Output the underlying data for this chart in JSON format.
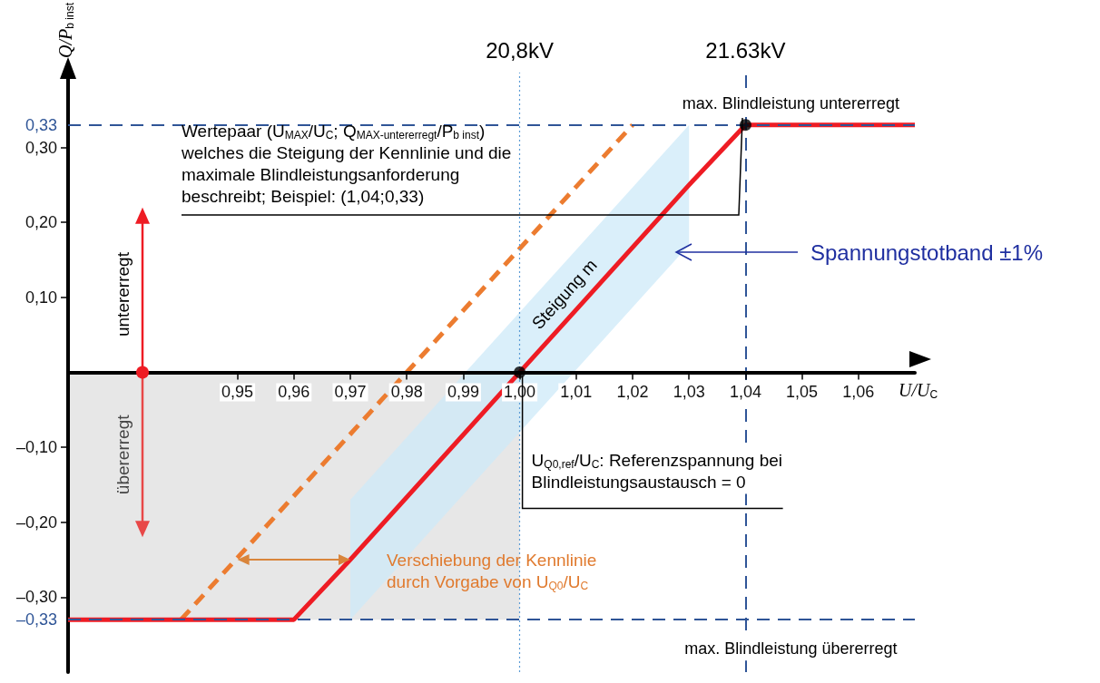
{
  "chart_data": {
    "type": "line",
    "xlabel": "U/U$_{C}$",
    "ylabel": "Q/P$_{b inst}$",
    "xlim": [
      0.92,
      1.07
    ],
    "ylim": [
      -0.4,
      0.4
    ],
    "xticks": [
      {
        "value": 0.95,
        "label": "0,95"
      },
      {
        "value": 0.96,
        "label": "0,96"
      },
      {
        "value": 0.97,
        "label": "0,97"
      },
      {
        "value": 0.98,
        "label": "0,98"
      },
      {
        "value": 0.99,
        "label": "0,99"
      },
      {
        "value": 1.0,
        "label": "1,00"
      },
      {
        "value": 1.01,
        "label": "1,01"
      },
      {
        "value": 1.02,
        "label": "1,02"
      },
      {
        "value": 1.03,
        "label": "1,03"
      },
      {
        "value": 1.04,
        "label": "1,04"
      },
      {
        "value": 1.05,
        "label": "1,05"
      },
      {
        "value": 1.06,
        "label": "1,06"
      }
    ],
    "yticks": [
      {
        "value": -0.3,
        "label": "–0,30"
      },
      {
        "value": -0.2,
        "label": "–0,20"
      },
      {
        "value": -0.1,
        "label": "–0,10"
      },
      {
        "value": 0.1,
        "label": "0,10"
      },
      {
        "value": 0.2,
        "label": "0,20"
      },
      {
        "value": 0.3,
        "label": "0,30"
      }
    ],
    "grid": false,
    "series": [
      {
        "type": "area",
        "color": "#e7e7e7",
        "x": [
          0.92,
          1.0
        ],
        "values": [
          -0.33,
          -0.33
        ],
        "marker": "none"
      },
      {
        "type": "line",
        "color": "#ec7c30",
        "line_style": "dashed",
        "x": [
          0.94,
          1.02
        ],
        "values": [
          -0.33,
          0.33
        ],
        "marker": "none"
      },
      {
        "color": "#ee1c24",
        "line_style": "solid",
        "x": [
          0.92,
          0.96,
          0.97,
          1.0,
          1.03,
          1.04,
          1.07
        ],
        "values": [
          -0.33,
          -0.33,
          -0.25,
          0,
          0.25,
          0.33,
          0.33
        ],
        "lower": [
          null,
          null,
          -0.33,
          -0.08,
          0.17,
          null,
          null
        ],
        "upper": [
          null,
          null,
          -0.17,
          0.08,
          0.33,
          null,
          null
        ],
        "marker": "none"
      },
      {
        "type": "scatter",
        "color": "#000000",
        "x": [
          1.0,
          1.04
        ],
        "values": [
          0,
          0.33
        ],
        "marker": "circle"
      }
    ],
    "ref_lines": [
      {
        "axis": "y",
        "value": 0.33,
        "label": "0,33",
        "color": "#2f5597",
        "line_style": "dashed"
      },
      {
        "axis": "y",
        "value": -0.33,
        "label": "–0,33",
        "color": "#2f5597",
        "line_style": "dashed"
      },
      {
        "axis": "x",
        "value": 1.0,
        "label": "20,8kV",
        "color": "#5b9bd5",
        "line_style": "dotted"
      },
      {
        "axis": "x",
        "value": 1.04,
        "label": "21.63kV",
        "color": "#2f5597",
        "line_style": "dashed"
      }
    ],
    "annotations": [
      {
        "text": "max. Blindleistung untererregt",
        "x": 1.04,
        "y": 0.33
      },
      "Wertepaar (U$_{MAX}$/U$_{C}$; Q$_{MAX-untererregt}$/P$_{b inst}$)\nwelches die Steigung der Kennlinie und die\nmaximale Blindleistungsanforderung\nbeschreibt; Beispiel: (1,04;0,33)",
      {
        "text": "Steigung m",
        "x": 1.01,
        "y": 0.08
      },
      {
        "text": "U$_{Q0,ref}$/U$_{C}$: Referenzspannung bei\nBlindleistungsaustausch = 0",
        "x": 1.0,
        "y": 0
      },
      {
        "text": "max. Blindleistung übererregt",
        "x": 1.04,
        "y": -0.33
      },
      {
        "text": "Verschiebung der Kennlinie\ndurch Vorgabe von U$_{Q0}$/U$_{C}$",
        "x": 0.97,
        "y": -0.25
      },
      "Spannungstotband ±1%",
      "untererregt",
      "übererregt"
    ]
  }
}
